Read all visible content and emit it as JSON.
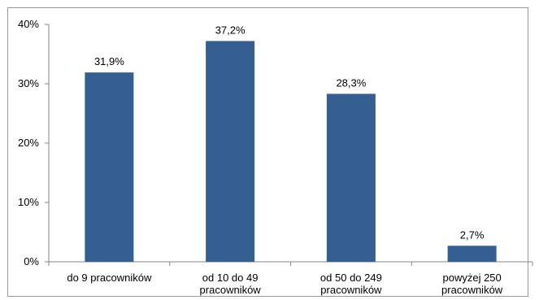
{
  "chart_data": {
    "type": "bar",
    "categories": [
      [
        "do 9 pracowników"
      ],
      [
        "od 10 do 49",
        "pracowników"
      ],
      [
        "od 50 do 249",
        "pracowników"
      ],
      [
        "powyżej 250",
        "pracowników"
      ]
    ],
    "values": [
      31.9,
      37.2,
      28.3,
      2.7
    ],
    "data_labels": [
      "31,9%",
      "37,2%",
      "28,3%",
      "2,7%"
    ],
    "yticks": [
      "0%",
      "10%",
      "20%",
      "30%",
      "40%"
    ],
    "ylim": [
      0,
      40
    ],
    "bar_color": "#355f91",
    "grid": false,
    "legend": "none"
  }
}
